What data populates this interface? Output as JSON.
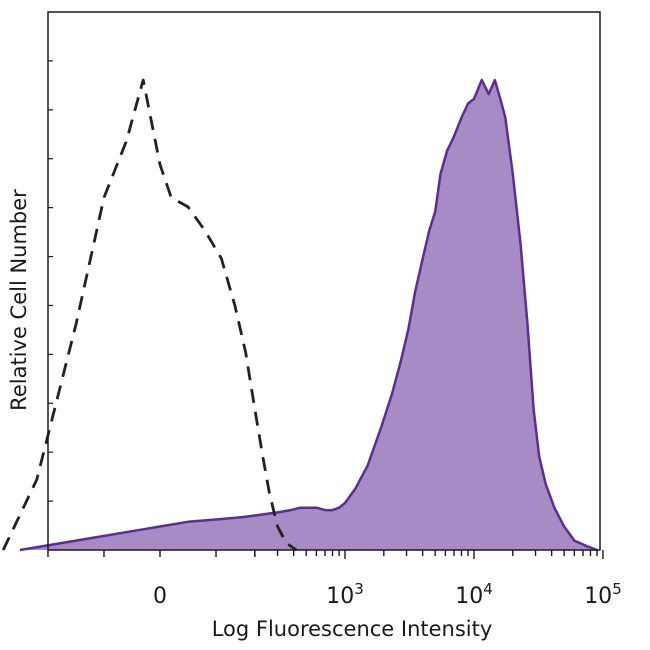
{
  "chart_data": {
    "type": "area",
    "xlabel": "Log Fluorescence Intensity",
    "ylabel": "Relative Cell Number",
    "x_scale": "biexponential",
    "x_tick_labels": [
      {
        "value": 0,
        "base": "0",
        "exp": ""
      },
      {
        "value": 1000,
        "base": "10",
        "exp": "3"
      },
      {
        "value": 10000,
        "base": "10",
        "exp": "4"
      },
      {
        "value": 100000,
        "base": "10",
        "exp": "5"
      }
    ],
    "grid": false,
    "legend": "none",
    "series": [
      {
        "style": "filled",
        "fill_color": "#a68bc4",
        "line_color": "#5b2e91",
        "points": [
          [
            -250,
            0
          ],
          [
            -150,
            2
          ],
          [
            -50,
            4
          ],
          [
            0,
            5
          ],
          [
            50,
            6
          ],
          [
            100,
            6.5
          ],
          [
            160,
            7
          ],
          [
            220,
            7.5
          ],
          [
            300,
            8
          ],
          [
            380,
            8.5
          ],
          [
            450,
            9
          ],
          [
            520,
            9
          ],
          [
            600,
            9
          ],
          [
            700,
            8.5
          ],
          [
            800,
            8.5
          ],
          [
            900,
            9
          ],
          [
            1000,
            10
          ],
          [
            1200,
            13
          ],
          [
            1500,
            18
          ],
          [
            1900,
            26
          ],
          [
            2300,
            33
          ],
          [
            2700,
            40
          ],
          [
            3100,
            47
          ],
          [
            3500,
            55
          ],
          [
            4000,
            62
          ],
          [
            4500,
            68
          ],
          [
            5000,
            72
          ],
          [
            5500,
            80
          ],
          [
            6200,
            85
          ],
          [
            7000,
            88
          ],
          [
            8000,
            92
          ],
          [
            9000,
            95
          ],
          [
            10000,
            96
          ],
          [
            11500,
            100
          ],
          [
            13000,
            97
          ],
          [
            14500,
            100
          ],
          [
            16000,
            96
          ],
          [
            17500,
            92
          ],
          [
            20000,
            80
          ],
          [
            23000,
            65
          ],
          [
            26000,
            48
          ],
          [
            29000,
            30
          ],
          [
            32000,
            20
          ],
          [
            36000,
            14
          ],
          [
            42000,
            9
          ],
          [
            50000,
            5
          ],
          [
            60000,
            2
          ],
          [
            75000,
            0.8
          ],
          [
            90000,
            0
          ]
        ]
      },
      {
        "style": "dashed",
        "line_color": "#222222",
        "points": [
          [
            -280,
            0
          ],
          [
            -220,
            15
          ],
          [
            -150,
            48
          ],
          [
            -100,
            75
          ],
          [
            -60,
            87
          ],
          [
            -30,
            100
          ],
          [
            0,
            82
          ],
          [
            20,
            75
          ],
          [
            50,
            73
          ],
          [
            80,
            68
          ],
          [
            110,
            62
          ],
          [
            140,
            52
          ],
          [
            170,
            42
          ],
          [
            200,
            30
          ],
          [
            230,
            20
          ],
          [
            260,
            12
          ],
          [
            300,
            5
          ],
          [
            350,
            1.5
          ],
          [
            420,
            0
          ]
        ]
      }
    ]
  }
}
